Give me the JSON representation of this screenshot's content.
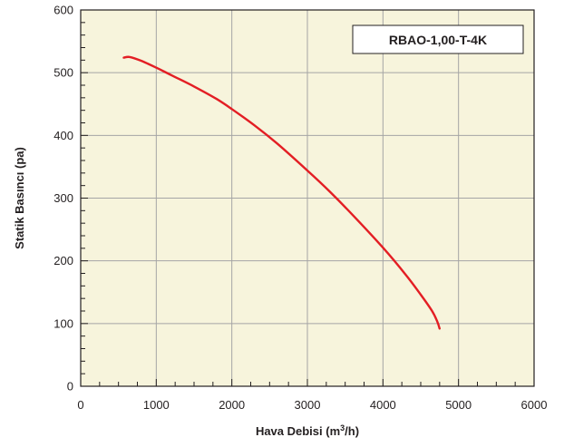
{
  "chart_data": {
    "type": "line",
    "title": "",
    "xlabel": "Hava Debisi (m³/h)",
    "ylabel": "Statik Basıncı (pa)",
    "xlim": [
      0,
      6000
    ],
    "ylim": [
      0,
      600
    ],
    "xticks": [
      0,
      1000,
      2000,
      3000,
      4000,
      5000,
      6000
    ],
    "yticks": [
      0,
      100,
      200,
      300,
      400,
      500,
      600
    ],
    "x_tick_labels": [
      "0",
      "1000",
      "2000",
      "3000",
      "4000",
      "5000",
      "6000"
    ],
    "y_tick_labels": [
      "0",
      "100",
      "200",
      "300",
      "400",
      "500",
      "600"
    ],
    "grid": true,
    "legend_position": "top-right",
    "series": [
      {
        "name": "RBAO-1,00-T-4K",
        "color": "#e31e24",
        "x": [
          570,
          650,
          800,
          1000,
          1200,
          1500,
          1800,
          2000,
          2300,
          2600,
          3000,
          3300,
          3600,
          4000,
          4300,
          4500,
          4650,
          4720,
          4750
        ],
        "y": [
          524,
          525,
          519,
          508,
          496,
          478,
          458,
          442,
          416,
          387,
          344,
          310,
          273,
          221,
          178,
          146,
          120,
          103,
          92
        ]
      }
    ]
  },
  "colors": {
    "plot_background": "#f7f4dc",
    "grid": "#a5a5a5",
    "axis": "#231f20"
  }
}
